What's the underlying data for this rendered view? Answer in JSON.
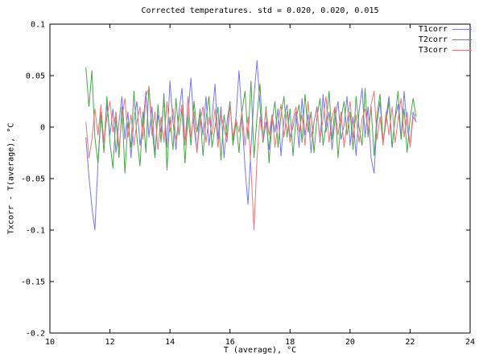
{
  "chart_data": {
    "type": "line",
    "title": "Corrected temperatures. std = 0.020, 0.020, 0.015",
    "xlabel": "T (average), °C",
    "ylabel": "Txcorr - T(average), °C",
    "xlim": [
      10,
      24
    ],
    "ylim": [
      -0.2,
      0.1
    ],
    "grid": false,
    "legend_position": "top-right",
    "xticks": {
      "values": [
        10,
        12,
        14,
        16,
        18,
        20,
        22,
        24
      ],
      "labels": [
        "10",
        "12",
        "14",
        "16",
        "18",
        "20",
        "22",
        "24"
      ]
    },
    "yticks": {
      "values": [
        0.1,
        0.05,
        0,
        -0.05,
        -0.1,
        -0.15,
        -0.2
      ],
      "labels": [
        "0.1",
        "0.05",
        "0",
        "-0.05",
        "-0.1",
        "-0.15",
        "-0.2"
      ]
    },
    "x_start": 11.2,
    "x_step": 0.1,
    "series": [
      {
        "name": "T1corr",
        "color": "#7878e8",
        "values": [
          -0.01,
          -0.048,
          -0.078,
          -0.1,
          -0.035,
          0.01,
          -0.015,
          0.022,
          -0.008,
          0.018,
          -0.025,
          0.005,
          0.03,
          -0.012,
          0.015,
          -0.03,
          0.008,
          0.025,
          -0.018,
          0.002,
          0.035,
          -0.01,
          0.02,
          -0.028,
          0.012,
          -0.005,
          0.028,
          -0.02,
          0.045,
          0.005,
          -0.022,
          0.015,
          0.038,
          -0.015,
          0.01,
          0.048,
          0.0,
          -0.025,
          0.018,
          -0.008,
          0.03,
          -0.018,
          0.008,
          0.042,
          -0.012,
          0.02,
          -0.03,
          0.005,
          0.025,
          -0.015,
          0.01,
          0.055,
          0.01,
          -0.04,
          -0.075,
          -0.02,
          0.03,
          0.065,
          0.02,
          -0.015,
          0.005,
          -0.022,
          0.012,
          -0.005,
          0.018,
          -0.028,
          0.008,
          0.022,
          -0.01,
          0.0,
          0.015,
          -0.02,
          0.028,
          -0.008,
          0.012,
          -0.025,
          0.005,
          0.02,
          -0.015,
          0.032,
          -0.005,
          0.015,
          -0.022,
          0.008,
          0.025,
          -0.012,
          0.002,
          0.03,
          -0.018,
          0.01,
          -0.028,
          0.015,
          0.038,
          -0.01,
          0.02,
          -0.03,
          -0.045,
          0.005,
          0.025,
          -0.015,
          0.01,
          0.03,
          -0.02,
          0.008,
          0.022,
          -0.012,
          0.035,
          0.0,
          -0.018,
          0.015,
          0.005
        ]
      },
      {
        "name": "T2corr",
        "color": "#4aa54a",
        "values": [
          0.058,
          0.02,
          0.055,
          -0.01,
          -0.035,
          0.015,
          -0.025,
          0.03,
          -0.015,
          -0.04,
          0.01,
          -0.03,
          0.02,
          -0.045,
          0.005,
          -0.02,
          0.035,
          -0.01,
          -0.038,
          0.015,
          -0.025,
          0.04,
          0.0,
          -0.03,
          0.022,
          -0.015,
          0.033,
          -0.042,
          0.01,
          -0.022,
          0.028,
          -0.008,
          0.018,
          -0.035,
          0.012,
          -0.018,
          0.025,
          -0.005,
          0.015,
          -0.028,
          0.008,
          0.03,
          -0.02,
          0.0,
          0.02,
          -0.032,
          0.012,
          -0.01,
          0.025,
          -0.018,
          0.005,
          -0.025,
          0.015,
          0.035,
          -0.012,
          0.045,
          -0.03,
          0.01,
          0.042,
          -0.015,
          0.02,
          -0.035,
          0.005,
          0.025,
          -0.02,
          0.012,
          0.03,
          -0.01,
          0.018,
          -0.028,
          0.008,
          0.022,
          -0.015,
          0.032,
          -0.005,
          0.015,
          -0.025,
          0.01,
          0.028,
          -0.018,
          0.002,
          0.035,
          -0.012,
          0.02,
          -0.03,
          0.008,
          0.025,
          -0.008,
          0.015,
          -0.022,
          0.03,
          0.0,
          -0.018,
          0.038,
          -0.01,
          0.02,
          -0.028,
          0.012,
          0.032,
          -0.015,
          0.005,
          0.025,
          -0.02,
          0.01,
          0.035,
          -0.012,
          0.018,
          -0.025,
          0.008,
          0.028,
          0.01
        ]
      },
      {
        "name": "T3corr",
        "color": "#e87878",
        "values": [
          0.005,
          -0.03,
          -0.012,
          0.018,
          -0.008,
          0.022,
          -0.015,
          0.01,
          0.025,
          -0.005,
          0.015,
          -0.02,
          0.008,
          0.028,
          -0.01,
          0.012,
          -0.018,
          0.005,
          0.02,
          -0.012,
          0.03,
          0.038,
          -0.008,
          0.015,
          -0.022,
          0.01,
          -0.015,
          0.025,
          -0.005,
          0.018,
          -0.012,
          0.008,
          0.022,
          -0.018,
          0.03,
          -0.01,
          0.015,
          -0.025,
          0.005,
          0.02,
          -0.015,
          0.01,
          -0.008,
          0.018,
          -0.02,
          0.012,
          0.0,
          -0.015,
          0.022,
          -0.01,
          0.008,
          -0.005,
          0.015,
          -0.018,
          0.01,
          -0.04,
          -0.1,
          -0.03,
          0.01,
          -0.012,
          0.018,
          -0.008,
          0.012,
          -0.02,
          0.005,
          0.022,
          -0.01,
          0.015,
          -0.015,
          0.008,
          0.02,
          -0.005,
          0.012,
          -0.018,
          0.025,
          -0.01,
          0.005,
          0.018,
          -0.012,
          0.008,
          0.03,
          -0.015,
          0.01,
          0.02,
          -0.008,
          0.015,
          -0.02,
          0.005,
          0.025,
          -0.01,
          0.012,
          -0.015,
          0.008,
          0.018,
          -0.005,
          0.022,
          0.035,
          -0.012,
          0.01,
          -0.018,
          0.015,
          -0.008,
          0.02,
          -0.015,
          0.008,
          0.028,
          -0.01,
          0.015,
          -0.02,
          0.01,
          0.005
        ]
      }
    ]
  }
}
